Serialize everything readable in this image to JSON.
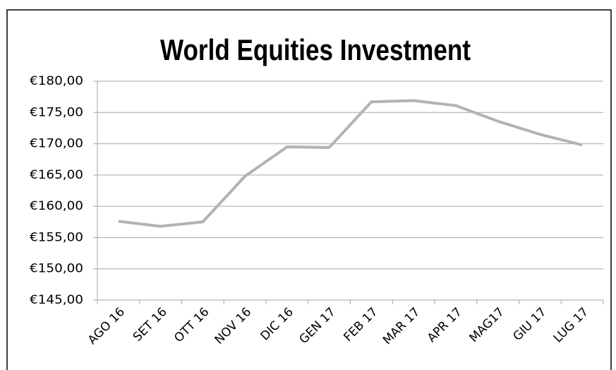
{
  "chart_data": {
    "type": "line",
    "title": "World Equities Investment",
    "categories": [
      "AGO 16",
      "SET 16",
      "OTT 16",
      "NOV 16",
      "DIC 16",
      "GEN 17",
      "FEB 17",
      "MAR 17",
      "APR 17",
      "MAG17",
      "GIU 17",
      "LUG 17"
    ],
    "series": [
      {
        "color": "#b3b3b3",
        "values": [
          157.6,
          156.8,
          157.5,
          164.8,
          169.5,
          169.4,
          176.7,
          176.9,
          176.1,
          173.6,
          171.5,
          169.8
        ]
      }
    ],
    "ylim": [
      145,
      180
    ],
    "yticks": [
      {
        "value": 145,
        "label": "€145,00"
      },
      {
        "value": 150,
        "label": "€150,00"
      },
      {
        "value": 155,
        "label": "€155,00"
      },
      {
        "value": 160,
        "label": "€160,00"
      },
      {
        "value": 165,
        "label": "€165,00"
      },
      {
        "value": 170,
        "label": "€170,00"
      },
      {
        "value": 175,
        "label": "€175,00"
      },
      {
        "value": 180,
        "label": "€180,00"
      }
    ],
    "grid": true
  }
}
